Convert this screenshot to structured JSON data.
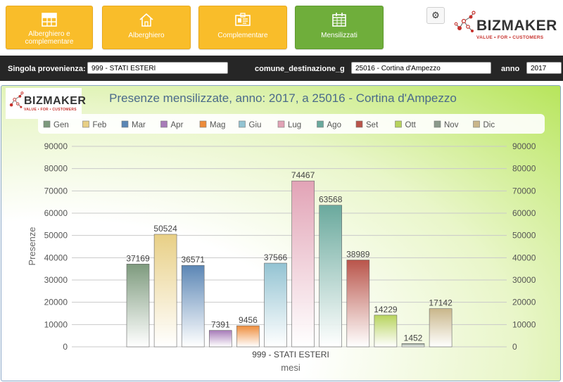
{
  "toolbar": {
    "buttons": [
      {
        "label_line1": "Alberghiero e",
        "label_line2": "complementare",
        "active": false
      },
      {
        "label": "Alberghiero",
        "active": false
      },
      {
        "label": "Complementare",
        "active": false
      },
      {
        "label": "Mensilizzati",
        "active": true
      }
    ],
    "settings_icon": "gear-icon"
  },
  "logo": {
    "word": "BIZMAKER",
    "tagline": "VALUE • FOR • CUSTOMERS"
  },
  "filters": {
    "provenienza_label": "Singola provenienza:",
    "provenienza_value": "999 - STATI ESTERI",
    "destinazione_label": "comune_destinazione_g",
    "destinazione_value": "25016 - Cortina d'Ampezzo",
    "anno_label": "anno",
    "anno_value": "2017"
  },
  "colors": {
    "accent_orange": "#f9bd2a",
    "accent_green": "#6fae3b",
    "filter_bar": "#262626",
    "logo_red": "#c7322d"
  },
  "chart_data": {
    "type": "bar",
    "title": "Presenze mensilizzate, anno: 2017, a 25016 - Cortina d'Ampezzo",
    "xlabel": "mesi",
    "ylabel": "Presenze",
    "categories": [
      "999 - STATI ESTERI"
    ],
    "ylim": [
      0,
      90000
    ],
    "yticks": [
      0,
      10000,
      20000,
      30000,
      40000,
      50000,
      60000,
      70000,
      80000,
      90000
    ],
    "grid": true,
    "legend_position": "top",
    "series": [
      {
        "name": "Gen",
        "values": [
          37169
        ],
        "color": "#7d9a7d"
      },
      {
        "name": "Feb",
        "values": [
          50524
        ],
        "color": "#e8cf85"
      },
      {
        "name": "Mar",
        "values": [
          36571
        ],
        "color": "#5b86b5"
      },
      {
        "name": "Apr",
        "values": [
          7391
        ],
        "color": "#a77bb8"
      },
      {
        "name": "Mag",
        "values": [
          9456
        ],
        "color": "#ee8c3b"
      },
      {
        "name": "Giu",
        "values": [
          37566
        ],
        "color": "#93c3d2"
      },
      {
        "name": "Lug",
        "values": [
          74467
        ],
        "color": "#e2a3b6"
      },
      {
        "name": "Ago",
        "values": [
          63568
        ],
        "color": "#6aa99d"
      },
      {
        "name": "Set",
        "values": [
          38989
        ],
        "color": "#b9544a"
      },
      {
        "name": "Ott",
        "values": [
          14229
        ],
        "color": "#b7d35d"
      },
      {
        "name": "Nov",
        "values": [
          1452
        ],
        "color": "#8b9a8b"
      },
      {
        "name": "Dic",
        "values": [
          17142
        ],
        "color": "#c9b68a"
      }
    ]
  }
}
